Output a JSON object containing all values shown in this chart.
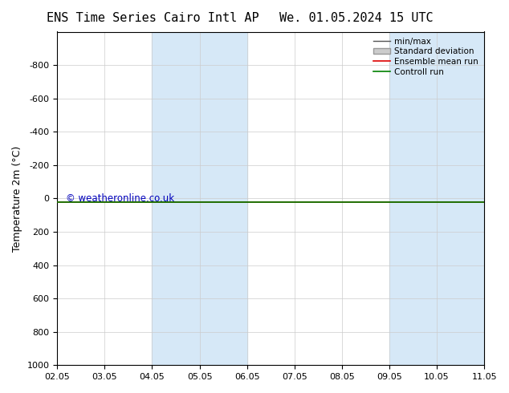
{
  "title_left": "ENS Time Series Cairo Intl AP",
  "title_right": "We. 01.05.2024 15 UTC",
  "ylabel": "Temperature 2m (°C)",
  "ylim_bottom": -1000,
  "ylim_top": 1000,
  "yticks": [
    -800,
    -600,
    -400,
    -200,
    0,
    200,
    400,
    600,
    800,
    1000
  ],
  "xtick_labels": [
    "02.05",
    "03.05",
    "04.05",
    "05.05",
    "06.05",
    "07.05",
    "08.05",
    "09.05",
    "10.05",
    "11.05"
  ],
  "xtick_positions": [
    0,
    1,
    2,
    3,
    4,
    5,
    6,
    7,
    8,
    9
  ],
  "xlim": [
    0,
    9
  ],
  "background_color": "#ffffff",
  "plot_bg_color": "#ffffff",
  "shaded_color": "#d6e8f7",
  "shaded_regions": [
    {
      "xstart": 2,
      "xend": 4
    },
    {
      "xstart": 7,
      "xend": 9
    }
  ],
  "green_line_y": 20,
  "red_line_y": 20,
  "watermark": "© weatheronline.co.uk",
  "watermark_color": "#0000bb",
  "legend_labels": [
    "min/max",
    "Standard deviation",
    "Ensemble mean run",
    "Controll run"
  ],
  "legend_colors": [
    "#555555",
    "#aaaaaa",
    "#dd0000",
    "#008000"
  ],
  "legend_styles": [
    "line",
    "band",
    "line",
    "line"
  ],
  "grid_color": "#cccccc",
  "spine_color": "#000000",
  "title_fontsize": 11,
  "tick_fontsize": 8,
  "ylabel_fontsize": 9
}
